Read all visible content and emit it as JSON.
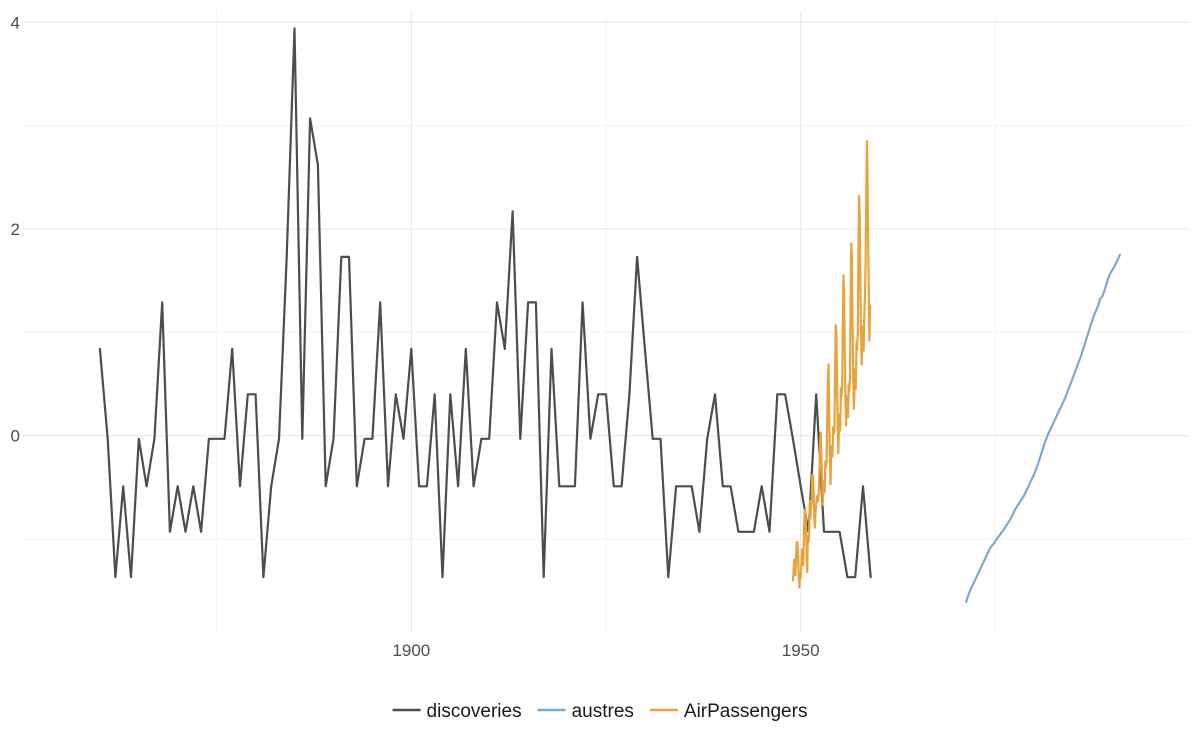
{
  "chart_data": {
    "type": "line",
    "title": "",
    "xlabel": "",
    "ylabel": "",
    "xlim": [
      1850,
      2000
    ],
    "ylim": [
      -1.9,
      4.1
    ],
    "x_ticks": [
      1900,
      1950
    ],
    "x_minor_ticks": [
      1875,
      1925,
      1975
    ],
    "y_ticks": [
      0,
      2,
      4
    ],
    "y_minor_ticks": [
      -1,
      1,
      3
    ],
    "grid": true,
    "legend": "bottom",
    "series": [
      {
        "name": "discoveries",
        "color": "#4d4d4d",
        "x": [
          1860,
          1861,
          1862,
          1863,
          1864,
          1865,
          1866,
          1867,
          1868,
          1869,
          1870,
          1871,
          1872,
          1873,
          1874,
          1875,
          1876,
          1877,
          1878,
          1879,
          1880,
          1881,
          1882,
          1883,
          1884,
          1885,
          1886,
          1887,
          1888,
          1889,
          1890,
          1891,
          1892,
          1893,
          1894,
          1895,
          1896,
          1897,
          1898,
          1899,
          1900,
          1901,
          1902,
          1903,
          1904,
          1905,
          1906,
          1907,
          1908,
          1909,
          1910,
          1911,
          1912,
          1913,
          1914,
          1915,
          1916,
          1917,
          1918,
          1919,
          1920,
          1921,
          1922,
          1923,
          1924,
          1925,
          1926,
          1927,
          1928,
          1929,
          1930,
          1931,
          1932,
          1933,
          1934,
          1935,
          1936,
          1937,
          1938,
          1939,
          1940,
          1941,
          1942,
          1943,
          1944,
          1945,
          1946,
          1947,
          1948,
          1949,
          1950,
          1951,
          1952,
          1953,
          1954,
          1955,
          1956,
          1957,
          1958,
          1959
        ],
        "y": [
          0.84,
          -0.03,
          -1.37,
          -0.49,
          -1.37,
          -0.03,
          -0.49,
          -0.03,
          1.29,
          -0.93,
          -0.49,
          -0.93,
          -0.49,
          -0.93,
          -0.03,
          -0.03,
          -0.03,
          0.84,
          -0.49,
          0.4,
          0.4,
          -1.37,
          -0.49,
          -0.03,
          1.73,
          3.94,
          -0.03,
          3.07,
          2.62,
          -0.49,
          -0.03,
          1.73,
          1.73,
          -0.49,
          -0.03,
          -0.03,
          1.29,
          -0.49,
          0.4,
          -0.03,
          0.84,
          -0.49,
          -0.49,
          0.4,
          -1.37,
          0.4,
          -0.49,
          0.84,
          -0.49,
          -0.03,
          -0.03,
          1.29,
          0.84,
          2.17,
          -0.03,
          1.29,
          1.29,
          -1.37,
          0.84,
          -0.49,
          -0.49,
          -0.49,
          1.29,
          -0.03,
          0.4,
          0.4,
          -0.49,
          -0.49,
          0.4,
          1.73,
          0.84,
          -0.03,
          -0.03,
          -1.37,
          -0.49,
          -0.49,
          -0.49,
          -0.93,
          -0.03,
          0.4,
          -0.49,
          -0.49,
          -0.93,
          -0.93,
          -0.93,
          -0.49,
          -0.93,
          0.4,
          0.4,
          -0.03,
          -0.49,
          -0.93,
          0.4,
          -0.93,
          -0.93,
          -0.93,
          -1.37,
          -1.37,
          -0.49,
          -1.37
        ]
      },
      {
        "name": "austres",
        "color": "#7da7d9",
        "x_start": 1971.25,
        "x_step": 0.25,
        "y": [
          -1.61,
          -1.55,
          -1.5,
          -1.46,
          -1.42,
          -1.38,
          -1.34,
          -1.3,
          -1.26,
          -1.22,
          -1.18,
          -1.14,
          -1.1,
          -1.07,
          -1.05,
          -1.02,
          -0.99,
          -0.97,
          -0.94,
          -0.92,
          -0.89,
          -0.86,
          -0.83,
          -0.8,
          -0.76,
          -0.72,
          -0.69,
          -0.66,
          -0.63,
          -0.6,
          -0.57,
          -0.53,
          -0.49,
          -0.45,
          -0.41,
          -0.37,
          -0.32,
          -0.27,
          -0.21,
          -0.15,
          -0.09,
          -0.04,
          0.01,
          0.05,
          0.09,
          0.13,
          0.17,
          0.21,
          0.25,
          0.29,
          0.33,
          0.37,
          0.42,
          0.47,
          0.52,
          0.57,
          0.62,
          0.67,
          0.72,
          0.77,
          0.83,
          0.89,
          0.95,
          1.01,
          1.07,
          1.13,
          1.18,
          1.22,
          1.27,
          1.33,
          1.35,
          1.4,
          1.46,
          1.52,
          1.57,
          1.6,
          1.63,
          1.67,
          1.71,
          1.75
        ]
      },
      {
        "name": "AirPassengers",
        "color": "#e8a33d",
        "x_start": 1949,
        "x_step": 0.0833333,
        "y": [
          -1.4,
          -1.33,
          -1.2,
          -1.25,
          -1.35,
          -1.16,
          -1.03,
          -1.03,
          -1.17,
          -1.33,
          -1.47,
          -1.33,
          -1.38,
          -1.28,
          -1.1,
          -1.16,
          -1.25,
          -0.95,
          -0.72,
          -0.72,
          -0.85,
          -1.08,
          -1.32,
          -0.97,
          -1.03,
          -0.97,
          -0.63,
          -0.8,
          -0.7,
          -0.63,
          -0.38,
          -0.38,
          -0.52,
          -0.78,
          -0.89,
          -0.72,
          -0.68,
          -0.6,
          -0.58,
          -0.63,
          -0.55,
          -0.31,
          -0.05,
          0.03,
          -0.18,
          -0.45,
          -0.67,
          -0.47,
          -0.44,
          -0.55,
          -0.25,
          -0.31,
          -0.25,
          0.17,
          0.54,
          0.69,
          0.19,
          -0.17,
          -0.47,
          -0.17,
          -0.1,
          -0.2,
          0.08,
          0.02,
          0.05,
          0.6,
          1.07,
          1.0,
          0.56,
          0.08,
          -0.17,
          0.13,
          0.2,
          0.05,
          0.46,
          0.38,
          0.48,
          1.08,
          1.55,
          1.33,
          0.8,
          0.37,
          0.1,
          0.38,
          0.38,
          0.18,
          0.5,
          0.43,
          0.58,
          1.25,
          1.86,
          1.72,
          1.06,
          0.55,
          0.26,
          0.46,
          0.64,
          0.45,
          0.91,
          0.83,
          1.0,
          1.76,
          2.32,
          2.12,
          1.49,
          0.96,
          0.69,
          0.99,
          1.06,
          0.82,
          1.16,
          1.33,
          1.68,
          2.2,
          2.85,
          2.53,
          1.9,
          1.38,
          0.92,
          1.26
        ]
      }
    ]
  }
}
